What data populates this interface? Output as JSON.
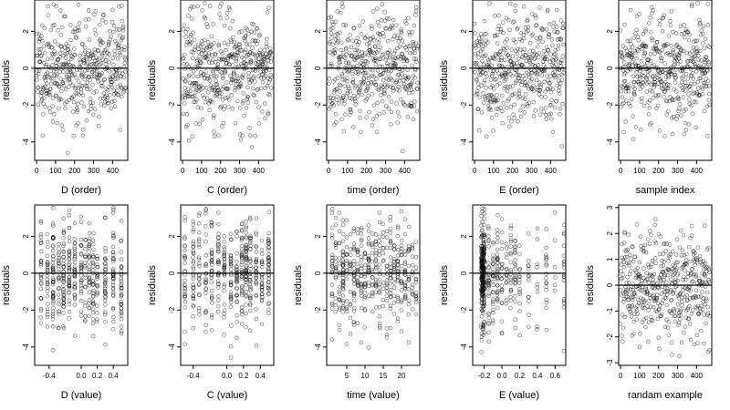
{
  "chart_data": [
    {
      "type": "scatter",
      "xlabel": "D (order)",
      "ylabel": "residuals",
      "xlim": [
        -10,
        480
      ],
      "ylim": [
        -5,
        3.7
      ],
      "xticks": [
        0,
        100,
        200,
        300,
        400
      ],
      "yticks": [
        -4,
        -2,
        0,
        2
      ],
      "hline": 0,
      "n": 470,
      "x_dist": "index",
      "spread": 1.45,
      "seed": 11
    },
    {
      "type": "scatter",
      "xlabel": "C (order)",
      "ylabel": "residuals",
      "xlim": [
        -10,
        480
      ],
      "ylim": [
        -5,
        3.7
      ],
      "xticks": [
        0,
        100,
        200,
        300,
        400
      ],
      "yticks": [
        -4,
        -2,
        0,
        2
      ],
      "hline": 0,
      "n": 470,
      "x_dist": "index",
      "spread": 1.45,
      "seed": 23
    },
    {
      "type": "scatter",
      "xlabel": "time (order)",
      "ylabel": "residuals",
      "xlim": [
        -10,
        480
      ],
      "ylim": [
        -5,
        3.7
      ],
      "xticks": [
        0,
        100,
        200,
        300,
        400
      ],
      "yticks": [
        -4,
        -2,
        0,
        2
      ],
      "hline": 0,
      "n": 470,
      "x_dist": "index",
      "spread": 1.45,
      "seed": 37
    },
    {
      "type": "scatter",
      "xlabel": "E (order)",
      "ylabel": "residuals",
      "xlim": [
        -10,
        480
      ],
      "ylim": [
        -5,
        3.7
      ],
      "xticks": [
        0,
        100,
        200,
        300,
        400
      ],
      "yticks": [
        -4,
        -2,
        0,
        2
      ],
      "hline": 0,
      "n": 470,
      "x_dist": "index",
      "spread": 1.45,
      "seed": 41
    },
    {
      "type": "scatter",
      "xlabel": "sample index",
      "ylabel": "residuals",
      "xlim": [
        -10,
        480
      ],
      "ylim": [
        -5,
        3.7
      ],
      "xticks": [
        0,
        100,
        200,
        300,
        400
      ],
      "yticks": [
        -4,
        -2,
        0,
        2
      ],
      "hline": 0,
      "n": 470,
      "x_dist": "index",
      "spread": 1.45,
      "seed": 53
    },
    {
      "type": "scatter",
      "xlabel": "D (value)",
      "ylabel": "residuals",
      "xlim": [
        -0.58,
        0.58
      ],
      "ylim": [
        -5,
        3.7
      ],
      "xticks": [
        -0.4,
        0,
        0.2,
        0.4
      ],
      "xtick_labels": [
        "-0.4",
        "0.0",
        "0.2",
        "0.4"
      ],
      "yticks": [
        -4,
        -2,
        0,
        2
      ],
      "hline": 0,
      "n": 470,
      "x_dist": "clusters",
      "clusters": [
        -0.5,
        -0.42,
        -0.35,
        -0.28,
        -0.22,
        -0.15,
        -0.08,
        0.0,
        0.05,
        0.1,
        0.15,
        0.2,
        0.3,
        0.4,
        0.5
      ],
      "spread": 1.45,
      "seed": 61
    },
    {
      "type": "scatter",
      "xlabel": "C (value)",
      "ylabel": "residuals",
      "xlim": [
        -0.55,
        0.56
      ],
      "ylim": [
        -5,
        3.7
      ],
      "xticks": [
        -0.4,
        0,
        0.2,
        0.4
      ],
      "xtick_labels": [
        "-0.4",
        "0.0",
        "0.2",
        "0.4"
      ],
      "yticks": [
        -4,
        -2,
        0,
        2
      ],
      "hline": 0,
      "n": 470,
      "x_dist": "clusters",
      "clusters": [
        -0.5,
        -0.4,
        -0.33,
        -0.25,
        -0.18,
        -0.1,
        -0.03,
        0.05,
        0.12,
        0.18,
        0.23,
        0.28,
        0.35,
        0.42,
        0.5
      ],
      "spread": 1.45,
      "seed": 71
    },
    {
      "type": "scatter",
      "xlabel": "time (value)",
      "ylabel": "residuals",
      "xlim": [
        -0.5,
        25
      ],
      "ylim": [
        -5,
        3.7
      ],
      "xticks": [
        5,
        10,
        15,
        20
      ],
      "yticks": [
        -4,
        -2,
        0,
        2
      ],
      "hline": 0,
      "n": 470,
      "x_dist": "clusters",
      "clusters": [
        1,
        2,
        3,
        4,
        5,
        6,
        7,
        8,
        9,
        10,
        11,
        12,
        13,
        14,
        15,
        16,
        17,
        18,
        19,
        20,
        21,
        22,
        23,
        24
      ],
      "spread": 1.45,
      "seed": 83
    },
    {
      "type": "scatter",
      "xlabel": "E (value)",
      "ylabel": "residuals",
      "xlim": [
        -0.33,
        0.72
      ],
      "ylim": [
        -5,
        3.7
      ],
      "xticks": [
        -0.2,
        0,
        0.2,
        0.4,
        0.6
      ],
      "xtick_labels": [
        "-0.2",
        "0.0",
        "0.2",
        "0.4",
        "0.6"
      ],
      "yticks": [
        -4,
        -2,
        0,
        2
      ],
      "hline": 0,
      "n": 470,
      "x_dist": "clusters",
      "clusters": [
        -0.23,
        -0.22,
        -0.21,
        -0.2,
        -0.15,
        -0.1,
        -0.05,
        0.0,
        0.05,
        0.1,
        0.15,
        0.2,
        0.3,
        0.4,
        0.5,
        0.6,
        0.7
      ],
      "cluster_weights": [
        6,
        6,
        6,
        5,
        3,
        3,
        3,
        2,
        2,
        2,
        2,
        1,
        1,
        1,
        1,
        1,
        1
      ],
      "spread": 1.45,
      "seed": 97
    },
    {
      "type": "scatter",
      "xlabel": "randam example",
      "ylabel": "residuals",
      "xlim": [
        -10,
        480
      ],
      "ylim": [
        -3.1,
        3.1
      ],
      "xticks": [
        0,
        100,
        200,
        300,
        400
      ],
      "yticks": [
        -3,
        -2,
        -1,
        0,
        1,
        2,
        3
      ],
      "hline": 0,
      "n": 470,
      "x_dist": "index",
      "spread": 1.0,
      "seed": 101
    }
  ]
}
